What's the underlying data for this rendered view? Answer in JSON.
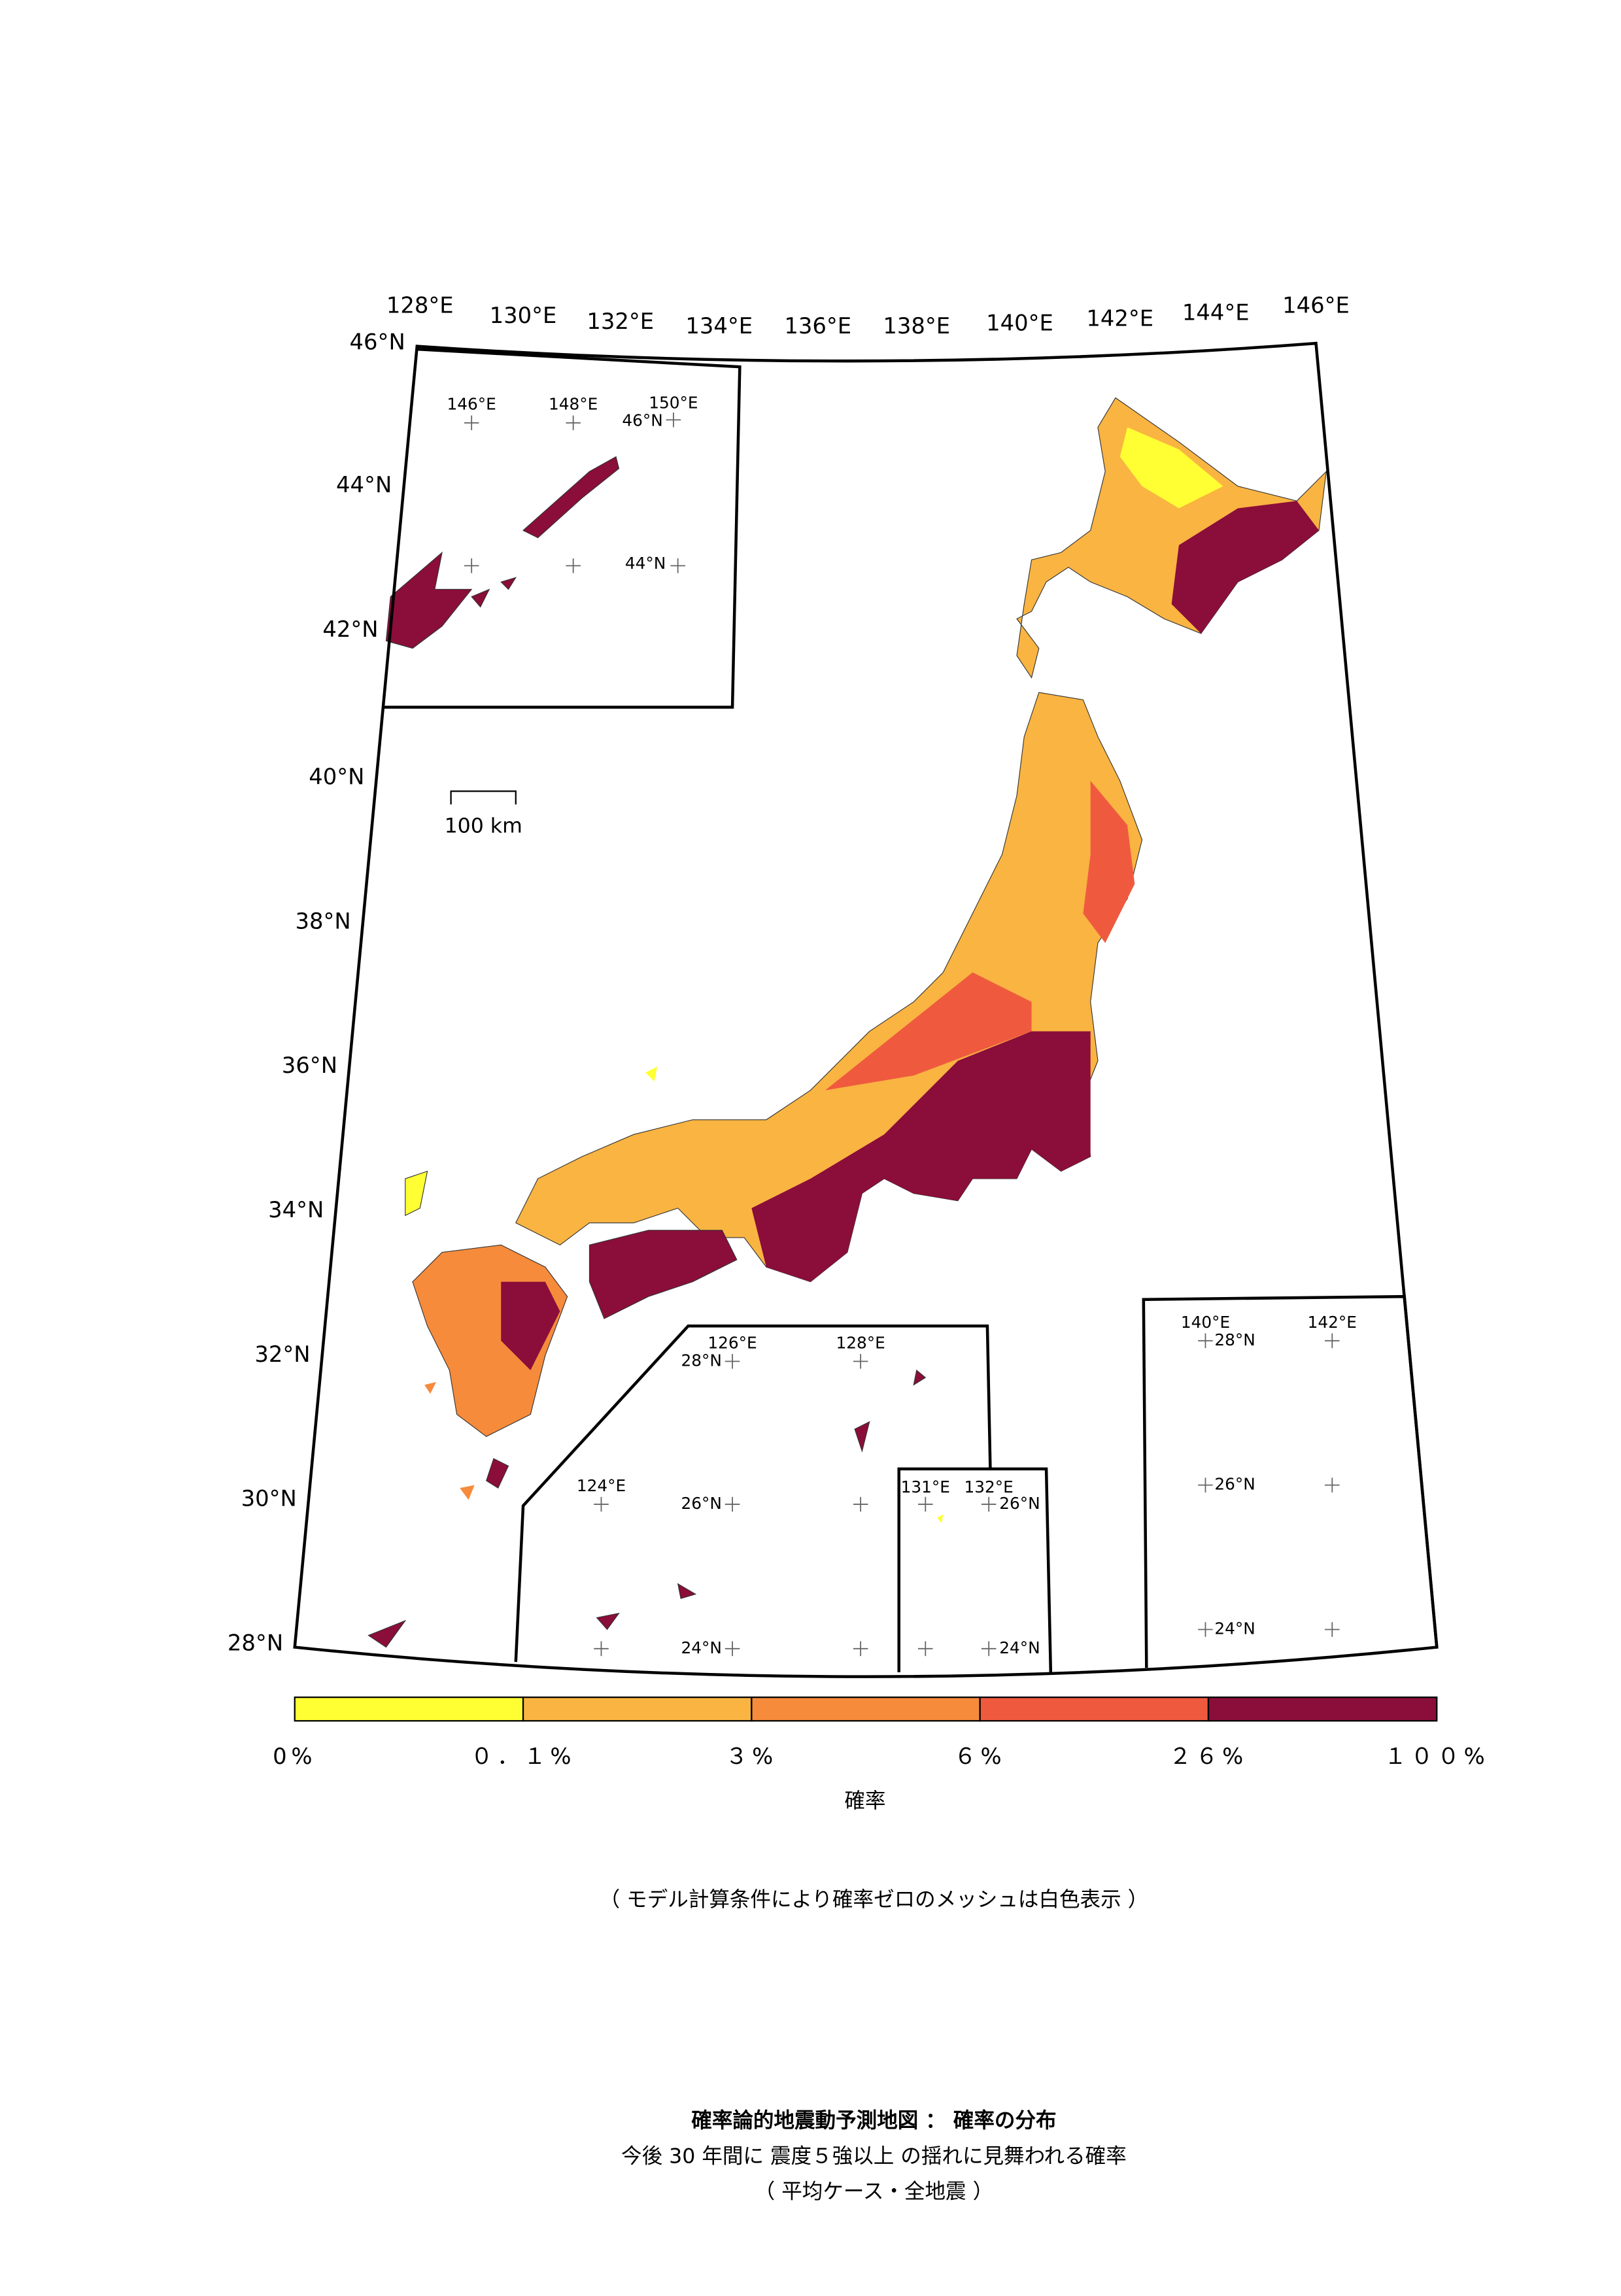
{
  "map": {
    "lon_labels": [
      "128°E",
      "130°E",
      "132°E",
      "134°E",
      "136°E",
      "138°E",
      "140°E",
      "142°E",
      "144°E",
      "146°E"
    ],
    "lat_labels": [
      "46°N",
      "44°N",
      "42°N",
      "40°N",
      "38°N",
      "36°N",
      "34°N",
      "32°N",
      "30°N",
      "28°N"
    ],
    "scale_bar": "100 km",
    "insets": [
      {
        "labels": [
          "146°E",
          "148°E",
          "150°E",
          "46°N",
          "44°N"
        ]
      },
      {
        "labels": [
          "126°E",
          "128°E",
          "28°N",
          "124°E",
          "26°N",
          "24°N"
        ]
      },
      {
        "labels": [
          "131°E",
          "132°E",
          "26°N",
          "24°N"
        ]
      },
      {
        "labels": [
          "140°E",
          "142°E",
          "28°N",
          "26°N",
          "24°N"
        ]
      }
    ]
  },
  "legend": {
    "colors": [
      "#ffff33",
      "#f9b442",
      "#f68b3c",
      "#ef5a3f",
      "#8b0d3a"
    ],
    "tick_labels": [
      "0%",
      "０．１%",
      "３%",
      "６%",
      "２６%",
      "１００%"
    ],
    "title": "確率"
  },
  "note": "（ モデル計算条件により確率ゼロのメッシュは白色表示 ）",
  "footer": {
    "title": "確率論的地震動予測地図 ： 確率の分布",
    "subtitle": "今後 30 年間に 震度５強以上 の揺れに見舞われる確率",
    "case": "（ 平均ケース・全地震 ）"
  }
}
